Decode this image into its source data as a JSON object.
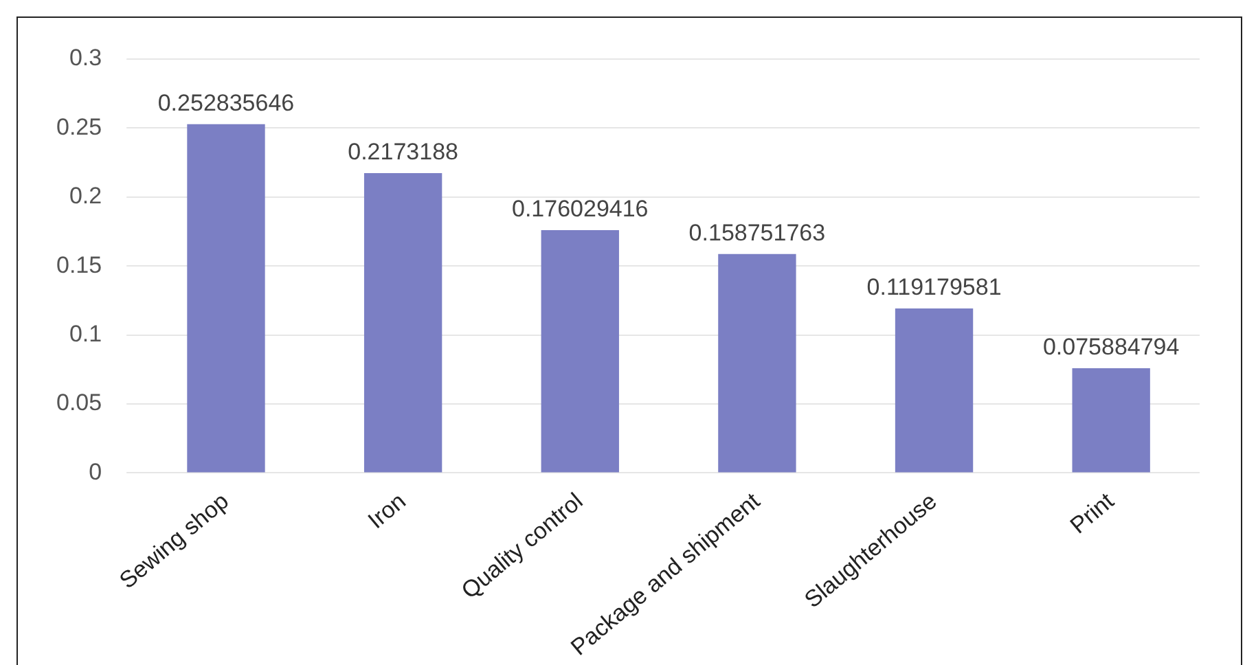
{
  "chart_data": {
    "type": "bar",
    "categories": [
      "Sewing shop",
      "Iron",
      "Quality control",
      "Package and shipment",
      "Slaughterhouse",
      "Print"
    ],
    "values": [
      0.252835646,
      0.2173188,
      0.176029416,
      0.158751763,
      0.119179581,
      0.075884794
    ],
    "color": "#7b7fc4",
    "ylim": [
      0,
      0.3
    ],
    "yticks": [
      0,
      0.05,
      0.1,
      0.15,
      0.2,
      0.25,
      0.3
    ],
    "grid": "y",
    "legend": false,
    "data_labels": true
  }
}
